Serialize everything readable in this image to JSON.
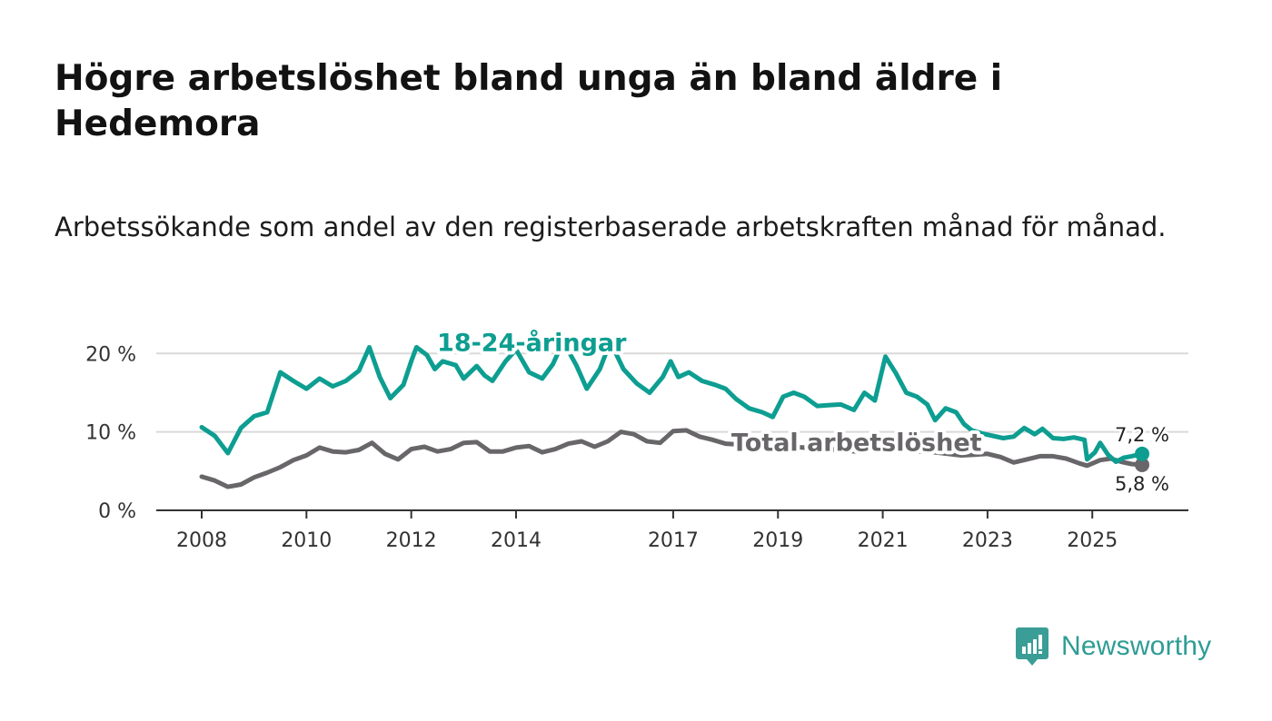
{
  "title": "Högre arbetslöshet bland unga än bland äldre i Hedemora",
  "subtitle": "Arbetssökande som andel av den registerbaserade arbetskraften månad för månad.",
  "brand": {
    "name": "Newsworthy",
    "icon": "newsworthy-logo-icon",
    "color": "#3a9e96"
  },
  "chart_data": {
    "type": "line",
    "title": "Högre arbetslöshet bland unga än bland äldre i Hedemora",
    "subtitle": "Arbetssökande som andel av den registerbaserade arbetskraften månad för månad.",
    "xlabel": "",
    "ylabel": "",
    "xlim": [
      2008,
      2025.95
    ],
    "ylim": [
      0,
      22
    ],
    "grid": true,
    "x_ticks": [
      {
        "value": 2008,
        "label": "2008"
      },
      {
        "value": 2010,
        "label": "2010"
      },
      {
        "value": 2012,
        "label": "2012"
      },
      {
        "value": 2014,
        "label": "2014"
      },
      {
        "value": 2017,
        "label": "2017"
      },
      {
        "value": 2019,
        "label": "2019"
      },
      {
        "value": 2021,
        "label": "2021"
      },
      {
        "value": 2023,
        "label": "2023"
      },
      {
        "value": 2025,
        "label": "2025"
      }
    ],
    "y_ticks": [
      {
        "value": 0,
        "label": "0 %"
      },
      {
        "value": 10,
        "label": "10 %"
      },
      {
        "value": 20,
        "label": "20 %"
      }
    ],
    "series": [
      {
        "name": "18-24-åringar",
        "color": "#0d9e91",
        "end_label": "7,2 %",
        "label": {
          "text": "18-24-åringar",
          "anchor_x": 2014.3,
          "anchor_y": 20.3
        },
        "points": [
          [
            2008.0,
            10.6
          ],
          [
            2008.25,
            9.5
          ],
          [
            2008.5,
            7.3
          ],
          [
            2008.75,
            10.5
          ],
          [
            2009.0,
            12.0
          ],
          [
            2009.25,
            12.5
          ],
          [
            2009.5,
            17.6
          ],
          [
            2009.75,
            16.5
          ],
          [
            2010.0,
            15.5
          ],
          [
            2010.25,
            16.8
          ],
          [
            2010.5,
            15.8
          ],
          [
            2010.75,
            16.5
          ],
          [
            2011.0,
            17.8
          ],
          [
            2011.2,
            20.8
          ],
          [
            2011.4,
            17.0
          ],
          [
            2011.6,
            14.3
          ],
          [
            2011.85,
            16.0
          ],
          [
            2012.0,
            19.0
          ],
          [
            2012.1,
            20.8
          ],
          [
            2012.3,
            19.8
          ],
          [
            2012.45,
            18.0
          ],
          [
            2012.6,
            19.0
          ],
          [
            2012.85,
            18.5
          ],
          [
            2013.0,
            16.8
          ],
          [
            2013.25,
            18.4
          ],
          [
            2013.4,
            17.2
          ],
          [
            2013.55,
            16.5
          ],
          [
            2013.8,
            19.0
          ],
          [
            2014.0,
            20.5
          ],
          [
            2014.25,
            17.6
          ],
          [
            2014.5,
            16.8
          ],
          [
            2014.7,
            18.6
          ],
          [
            2014.9,
            21.5
          ],
          [
            2015.15,
            18.5
          ],
          [
            2015.35,
            15.5
          ],
          [
            2015.6,
            18.0
          ],
          [
            2015.8,
            21.5
          ],
          [
            2016.05,
            18.0
          ],
          [
            2016.3,
            16.2
          ],
          [
            2016.55,
            15.0
          ],
          [
            2016.8,
            17.0
          ],
          [
            2016.95,
            19.0
          ],
          [
            2017.1,
            17.0
          ],
          [
            2017.3,
            17.6
          ],
          [
            2017.55,
            16.5
          ],
          [
            2017.8,
            16.0
          ],
          [
            2018.0,
            15.5
          ],
          [
            2018.2,
            14.2
          ],
          [
            2018.45,
            13.0
          ],
          [
            2018.7,
            12.5
          ],
          [
            2018.9,
            11.9
          ],
          [
            2019.1,
            14.5
          ],
          [
            2019.3,
            15.0
          ],
          [
            2019.5,
            14.5
          ],
          [
            2019.75,
            13.3
          ],
          [
            2019.95,
            13.4
          ],
          [
            2020.2,
            13.5
          ],
          [
            2020.45,
            12.8
          ],
          [
            2020.65,
            15.0
          ],
          [
            2020.85,
            14.0
          ],
          [
            2021.05,
            19.6
          ],
          [
            2021.25,
            17.5
          ],
          [
            2021.45,
            15.0
          ],
          [
            2021.65,
            14.5
          ],
          [
            2021.85,
            13.5
          ],
          [
            2022.0,
            11.5
          ],
          [
            2022.2,
            13.0
          ],
          [
            2022.4,
            12.5
          ],
          [
            2022.55,
            11.0
          ],
          [
            2022.7,
            10.2
          ],
          [
            2022.9,
            9.8
          ],
          [
            2023.1,
            9.5
          ],
          [
            2023.3,
            9.2
          ],
          [
            2023.5,
            9.4
          ],
          [
            2023.7,
            10.5
          ],
          [
            2023.9,
            9.7
          ],
          [
            2024.05,
            10.4
          ],
          [
            2024.25,
            9.2
          ],
          [
            2024.45,
            9.1
          ],
          [
            2024.65,
            9.3
          ],
          [
            2024.85,
            9.0
          ],
          [
            2024.9,
            6.5
          ],
          [
            2025.05,
            7.4
          ],
          [
            2025.15,
            8.6
          ],
          [
            2025.3,
            7.1
          ],
          [
            2025.45,
            6.2
          ],
          [
            2025.6,
            6.7
          ],
          [
            2025.75,
            6.9
          ],
          [
            2025.95,
            7.2
          ]
        ]
      },
      {
        "name": "Total arbetslöshet",
        "color": "#686669",
        "end_label": "5,8 %",
        "label": {
          "text": "Total arbetslöshet",
          "anchor_x": 2020.5,
          "anchor_y": 7.6
        },
        "points": [
          [
            2008.0,
            4.3
          ],
          [
            2008.25,
            3.8
          ],
          [
            2008.5,
            3.0
          ],
          [
            2008.75,
            3.3
          ],
          [
            2009.0,
            4.2
          ],
          [
            2009.25,
            4.8
          ],
          [
            2009.5,
            5.5
          ],
          [
            2009.75,
            6.4
          ],
          [
            2010.0,
            7.0
          ],
          [
            2010.25,
            8.0
          ],
          [
            2010.5,
            7.5
          ],
          [
            2010.75,
            7.4
          ],
          [
            2011.0,
            7.7
          ],
          [
            2011.25,
            8.6
          ],
          [
            2011.5,
            7.2
          ],
          [
            2011.75,
            6.5
          ],
          [
            2012.0,
            7.8
          ],
          [
            2012.25,
            8.1
          ],
          [
            2012.5,
            7.5
          ],
          [
            2012.75,
            7.8
          ],
          [
            2013.0,
            8.6
          ],
          [
            2013.25,
            8.7
          ],
          [
            2013.5,
            7.5
          ],
          [
            2013.75,
            7.5
          ],
          [
            2014.0,
            8.0
          ],
          [
            2014.25,
            8.2
          ],
          [
            2014.5,
            7.4
          ],
          [
            2014.75,
            7.8
          ],
          [
            2015.0,
            8.5
          ],
          [
            2015.25,
            8.8
          ],
          [
            2015.5,
            8.1
          ],
          [
            2015.75,
            8.8
          ],
          [
            2016.0,
            10.0
          ],
          [
            2016.25,
            9.7
          ],
          [
            2016.5,
            8.8
          ],
          [
            2016.75,
            8.6
          ],
          [
            2017.0,
            10.1
          ],
          [
            2017.25,
            10.2
          ],
          [
            2017.5,
            9.4
          ],
          [
            2017.75,
            9.0
          ],
          [
            2018.0,
            8.5
          ],
          [
            2018.5,
            8.3
          ],
          [
            2019.0,
            8.2
          ],
          [
            2019.5,
            8.0
          ],
          [
            2020.0,
            7.8
          ],
          [
            2020.5,
            7.5
          ],
          [
            2021.0,
            7.9
          ],
          [
            2021.5,
            7.6
          ],
          [
            2022.0,
            7.4
          ],
          [
            2022.5,
            7.0
          ],
          [
            2022.75,
            7.1
          ],
          [
            2023.0,
            7.2
          ],
          [
            2023.25,
            6.8
          ],
          [
            2023.5,
            6.1
          ],
          [
            2023.75,
            6.5
          ],
          [
            2024.0,
            6.9
          ],
          [
            2024.25,
            6.9
          ],
          [
            2024.5,
            6.6
          ],
          [
            2024.75,
            6.0
          ],
          [
            2024.9,
            5.7
          ],
          [
            2025.15,
            6.4
          ],
          [
            2025.35,
            6.6
          ],
          [
            2025.55,
            6.2
          ],
          [
            2025.75,
            5.9
          ],
          [
            2025.95,
            5.8
          ]
        ]
      }
    ]
  }
}
